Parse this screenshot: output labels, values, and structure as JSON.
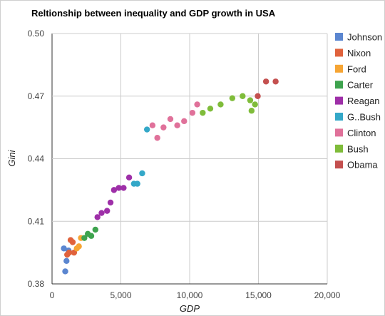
{
  "chart_data": {
    "type": "scatter",
    "title": "Reltionship between inequality and GDP growth in USA",
    "xlabel": "GDP",
    "ylabel": "Gini",
    "xlim": [
      0,
      20000
    ],
    "ylim": [
      0.38,
      0.5
    ],
    "x_ticks": [
      0,
      5000,
      10000,
      15000,
      20000
    ],
    "x_tick_labels": [
      "0",
      "5,000",
      "10,000",
      "15,000",
      "20,000"
    ],
    "y_ticks": [
      0.38,
      0.41,
      0.44,
      0.47,
      0.5
    ],
    "y_tick_labels": [
      "0.38",
      "0.41",
      "0.44",
      "0.47",
      "0.50"
    ],
    "grid": true,
    "legend_position": "right",
    "series": [
      {
        "name": "Johnson",
        "color": "#5b86d0",
        "points": [
          [
            860,
            0.397
          ],
          [
            960,
            0.386
          ],
          [
            1050,
            0.391
          ],
          [
            1200,
            0.396
          ]
        ]
      },
      {
        "name": "Nixon",
        "color": "#e0623c",
        "points": [
          [
            1100,
            0.394
          ],
          [
            1240,
            0.395
          ],
          [
            1350,
            0.401
          ],
          [
            1500,
            0.4
          ],
          [
            1600,
            0.395
          ]
        ]
      },
      {
        "name": "Ford",
        "color": "#f6a534",
        "points": [
          [
            1800,
            0.397
          ],
          [
            1950,
            0.398
          ],
          [
            2100,
            0.402
          ]
        ]
      },
      {
        "name": "Carter",
        "color": "#3ea34e",
        "points": [
          [
            2350,
            0.402
          ],
          [
            2600,
            0.404
          ],
          [
            2850,
            0.403
          ],
          [
            3150,
            0.406
          ]
        ]
      },
      {
        "name": "Reagan",
        "color": "#9e2fa8",
        "points": [
          [
            3300,
            0.412
          ],
          [
            3600,
            0.414
          ],
          [
            4000,
            0.415
          ],
          [
            4250,
            0.419
          ],
          [
            4500,
            0.425
          ],
          [
            4850,
            0.426
          ],
          [
            5200,
            0.426
          ],
          [
            5600,
            0.431
          ]
        ]
      },
      {
        "name": "G..Bush",
        "color": "#34a8c8",
        "points": [
          [
            5950,
            0.428
          ],
          [
            6200,
            0.428
          ],
          [
            6550,
            0.433
          ],
          [
            6900,
            0.454
          ]
        ]
      },
      {
        "name": "Clinton",
        "color": "#e0719a",
        "points": [
          [
            7300,
            0.456
          ],
          [
            7650,
            0.45
          ],
          [
            8100,
            0.455
          ],
          [
            8600,
            0.459
          ],
          [
            9100,
            0.456
          ],
          [
            9600,
            0.458
          ],
          [
            10200,
            0.462
          ],
          [
            10550,
            0.466
          ]
        ]
      },
      {
        "name": "Bush",
        "color": "#7fbc3a",
        "points": [
          [
            10950,
            0.462
          ],
          [
            11500,
            0.464
          ],
          [
            12250,
            0.466
          ],
          [
            13100,
            0.469
          ],
          [
            13850,
            0.47
          ],
          [
            14400,
            0.468
          ],
          [
            14750,
            0.466
          ],
          [
            14500,
            0.463
          ]
        ]
      },
      {
        "name": "Obama",
        "color": "#c4504f",
        "points": [
          [
            14950,
            0.47
          ],
          [
            15550,
            0.477
          ],
          [
            16250,
            0.477
          ]
        ]
      }
    ]
  }
}
